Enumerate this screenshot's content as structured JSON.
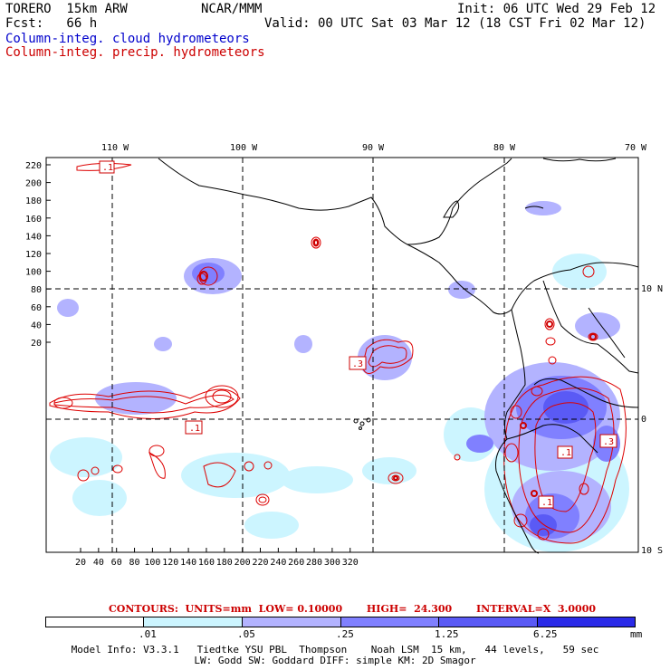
{
  "header": {
    "model": "TORERO  15km ARW",
    "org": "NCAR/MMM",
    "init": "Init: 06 UTC Wed 29 Feb 12",
    "fcst": "Fcst:   66 h",
    "valid": "Valid: 00 UTC Sat 03 Mar 12 (18 CST Fri 02 Mar 12)",
    "field1": "Column-integ. cloud hydrometeors",
    "field2": "Column-integ. precip. hydrometeors"
  },
  "map": {
    "lon_labels": [
      "110 W",
      "100 W",
      "90 W",
      "80 W",
      "70 W"
    ],
    "lat_labels": [
      "10 N",
      "0",
      "10 S"
    ],
    "y_ticks": [
      "220",
      "200",
      "180",
      "160",
      "140",
      "120",
      "100",
      "80",
      "60",
      "40",
      "20"
    ],
    "x_ticks": [
      "20",
      "40",
      "60",
      "80",
      "100",
      "120",
      "140",
      "160",
      "180",
      "200",
      "220",
      "240",
      "260",
      "280",
      "300",
      "320"
    ],
    "box_labels": [
      ".1",
      ".3",
      ".1",
      ".1",
      ".3",
      ".1"
    ],
    "colors": {
      "land": "#000000",
      "grid": "#000000",
      "precip_contour": "#dd0000",
      "cloud_shades": [
        "#ffffff",
        "#ccf5ff",
        "#b3b3ff",
        "#8080ff",
        "#5050f5",
        "#2020e0"
      ]
    }
  },
  "contour_info": {
    "text": "CONTOURS:  UNITS=mm  LOW= 0.10000       HIGH=  24.300       INTERVAL=X  3.0000"
  },
  "colorbar": {
    "labels": [
      ".01",
      ".05",
      ".25",
      "1.25",
      "6.25"
    ],
    "unit": "mm",
    "colors": [
      "#ffffff",
      "#ccf5ff",
      "#b3b3ff",
      "#8080ff",
      "#5a5af5",
      "#2a2ae8"
    ]
  },
  "footer": {
    "line1": "Model Info: V3.3.1   Tiedtke YSU PBL  Thompson    Noah LSM  15 km,   44 levels,   59 sec",
    "line2": "LW: Godd SW: Goddard DIFF: simple KM: 2D Smagor"
  }
}
